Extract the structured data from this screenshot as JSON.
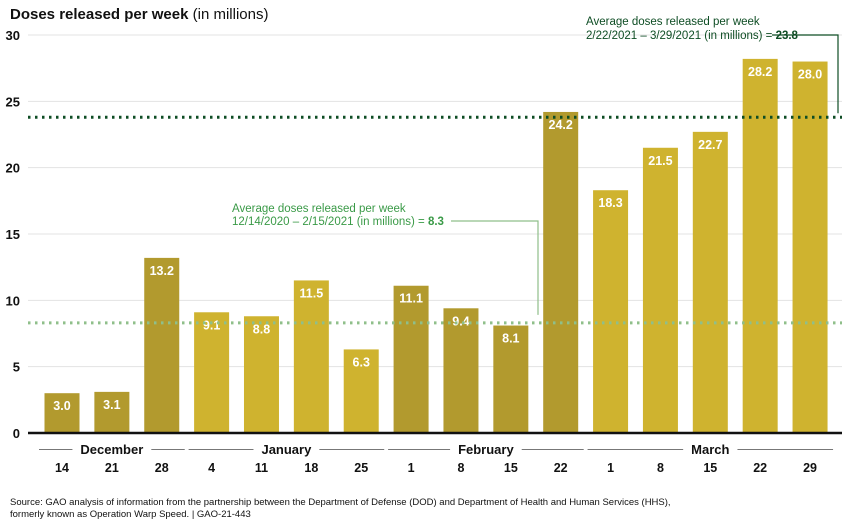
{
  "title": {
    "bold": "Doses released per week",
    "rest": " (in millions)"
  },
  "source": {
    "line1": "Source: GAO analysis of information from the partnership between the Department of Defense (DOD) and Department of Health and Human Services (HHS),",
    "line2": "formerly known as Operation Warp Speed.  |  GAO-21-443"
  },
  "colors": {
    "bar_dark": "#b29a2e",
    "bar_light": "#cfb32f",
    "avg1_line": "#8fbf8a",
    "avg1_text": "#3a9a47",
    "avg2_line": "#0e4d24",
    "avg2_text": "#0e4d24",
    "grid": "#e3e3e3",
    "axis": "#111111"
  },
  "chart_data": {
    "type": "bar",
    "title": "Doses released per week (in millions)",
    "ylim": [
      0,
      30
    ],
    "yticks": [
      0,
      5,
      10,
      15,
      20,
      25,
      30
    ],
    "grid": true,
    "categories": [
      "14",
      "21",
      "28",
      "4",
      "11",
      "18",
      "25",
      "1",
      "8",
      "15",
      "22",
      "1",
      "8",
      "15",
      "22",
      "29"
    ],
    "months": [
      {
        "label": "December",
        "first": 0,
        "last": 2
      },
      {
        "label": "January",
        "first": 3,
        "last": 6
      },
      {
        "label": "February",
        "first": 7,
        "last": 10
      },
      {
        "label": "March",
        "first": 11,
        "last": 15
      }
    ],
    "values": [
      3.0,
      3.1,
      13.2,
      9.1,
      8.8,
      11.5,
      6.3,
      11.1,
      9.4,
      8.1,
      24.2,
      18.3,
      21.5,
      22.7,
      28.2,
      28.0
    ],
    "value_labels": [
      "3.0",
      "3.1",
      "13.2",
      "9.1",
      "8.8",
      "11.5",
      "6.3",
      "11.1",
      "9.4",
      "8.1",
      "24.2",
      "18.3",
      "21.5",
      "22.7",
      "28.2",
      "28.0"
    ],
    "shades": [
      "dark",
      "dark",
      "dark",
      "light",
      "light",
      "light",
      "light",
      "dark",
      "dark",
      "dark",
      "dark",
      "light",
      "light",
      "light",
      "light",
      "light"
    ],
    "averages": [
      {
        "value": 8.3,
        "line1": "Average doses released per week",
        "line2": "12/14/2020 – 2/15/2021 (in millions) = ",
        "value_text": "8.3"
      },
      {
        "value": 23.8,
        "line1": "Average doses released per week",
        "line2": "2/22/2021 – 3/29/2021 (in millions) = ",
        "value_text": "23.8"
      }
    ]
  }
}
